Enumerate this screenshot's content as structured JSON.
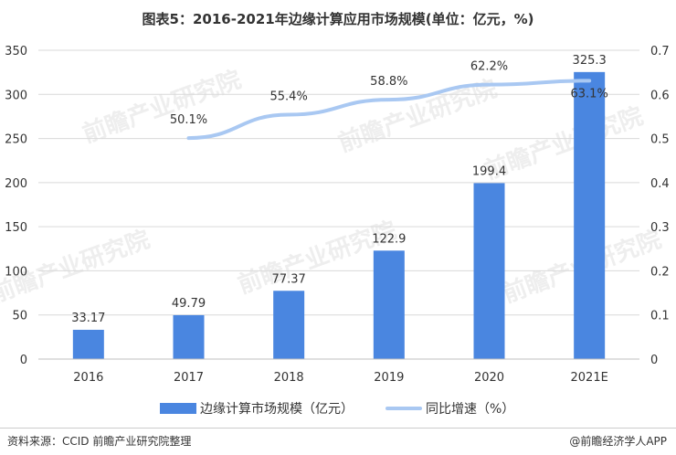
{
  "title": "图表5：2016-2021年边缘计算应用市场规模(单位：亿元，%)",
  "watermark": "前瞻产业研究院",
  "legend": {
    "bar": "边缘计算市场规模（亿元）",
    "line": "同比增速（%）"
  },
  "footer": {
    "source": "资料来源：CCID 前瞻产业研究院整理",
    "credit": "@前瞻经济学人APP"
  },
  "colors": {
    "bar": "#4a86e0",
    "line": "#a9c8f2",
    "grid": "#d9d9d9"
  },
  "chart_data": {
    "type": "bar",
    "title": "图表5：2016-2021年边缘计算应用市场规模(单位：亿元，%)",
    "categories": [
      "2016",
      "2017",
      "2018",
      "2019",
      "2020",
      "2021E"
    ],
    "series": [
      {
        "name": "边缘计算市场规模（亿元）",
        "type": "bar",
        "axis": "left",
        "values": [
          33.17,
          49.79,
          77.37,
          122.9,
          199.4,
          325.3
        ],
        "labels": [
          "33.17",
          "49.79",
          "77.37",
          "122.9",
          "199.4",
          "325.3"
        ]
      },
      {
        "name": "同比增速（%）",
        "type": "line",
        "axis": "right",
        "values": [
          null,
          0.501,
          0.554,
          0.588,
          0.622,
          0.631
        ],
        "labels": [
          "",
          "50.1%",
          "55.4%",
          "58.8%",
          "62.2%",
          "63.1%"
        ]
      }
    ],
    "y_left": {
      "min": 0,
      "max": 350,
      "ticks": [
        "0",
        "50",
        "100",
        "150",
        "200",
        "250",
        "300",
        "350"
      ]
    },
    "y_right": {
      "min": 0,
      "max": 0.7,
      "ticks": [
        "0",
        "0.1",
        "0.2",
        "0.3",
        "0.4",
        "0.5",
        "0.6",
        "0.7"
      ]
    },
    "grid": true,
    "legend_position": "bottom"
  }
}
